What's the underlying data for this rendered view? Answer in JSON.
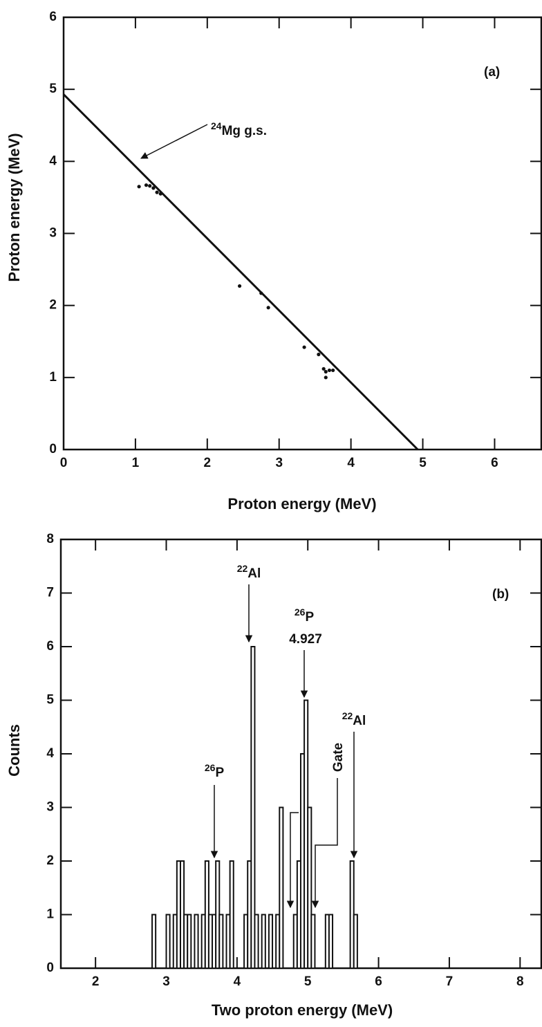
{
  "chart_data": [
    {
      "type": "scatter",
      "panel_label": "(a)",
      "x_label": "Proton energy (MeV)",
      "y_label": "Proton energy (MeV)",
      "xlim": [
        0,
        6.65
      ],
      "ylim": [
        0,
        6
      ],
      "xticks": [
        0,
        1,
        2,
        3,
        4,
        5,
        6
      ],
      "yticks": [
        0,
        1,
        2,
        3,
        4,
        5,
        6
      ],
      "color": "#111111",
      "grid": false,
      "annotations": [
        {
          "sup": "24",
          "text": "Mg g.s."
        }
      ],
      "points": {
        "x": [
          1.05,
          1.15,
          1.2,
          1.25,
          1.3,
          1.35,
          2.45,
          2.75,
          2.85,
          3.35,
          3.55,
          3.62,
          3.65,
          3.7,
          3.75,
          3.65
        ],
        "values": [
          3.65,
          3.67,
          3.66,
          3.63,
          3.57,
          3.55,
          2.27,
          2.17,
          1.97,
          1.42,
          1.32,
          1.12,
          1.08,
          1.1,
          1.1,
          1.0
        ]
      },
      "line": {
        "x": [
          0,
          4.93
        ],
        "values": [
          4.93,
          0
        ]
      }
    },
    {
      "type": "histogram",
      "panel_label": "(b)",
      "x_label": "Two proton energy (MeV)",
      "y_label": "Counts",
      "xlim": [
        1.51,
        8.3
      ],
      "ylim": [
        0,
        8
      ],
      "xticks": [
        2,
        3,
        4,
        5,
        6,
        7,
        8
      ],
      "yticks": [
        0,
        1,
        2,
        3,
        4,
        5,
        6,
        7,
        8
      ],
      "color": "#111111",
      "grid": false,
      "annotations": [
        {
          "sup": "22",
          "text": "Al"
        },
        {
          "sup": "26",
          "text": "P",
          "note": "4.927"
        },
        {
          "sup": "26",
          "text": "P"
        },
        {
          "sup": "22",
          "text": "Al"
        },
        {
          "text": "Gate"
        }
      ],
      "bins": [
        2.75,
        2.8,
        2.85,
        2.9,
        2.95,
        3.0,
        3.05,
        3.1,
        3.15,
        3.2,
        3.25,
        3.3,
        3.35,
        3.4,
        3.45,
        3.5,
        3.55,
        3.6,
        3.65,
        3.7,
        3.75,
        3.8,
        3.85,
        3.9,
        3.95,
        4.0,
        4.05,
        4.1,
        4.15,
        4.2,
        4.25,
        4.3,
        4.35,
        4.4,
        4.45,
        4.5,
        4.55,
        4.6,
        4.65,
        4.7,
        4.75,
        4.8,
        4.85,
        4.9,
        4.95,
        5.0,
        5.05,
        5.1,
        5.15,
        5.2,
        5.25,
        5.3,
        5.35,
        5.4,
        5.45,
        5.5,
        5.55,
        5.6,
        5.65,
        5.7,
        5.75
      ],
      "values": [
        0,
        1,
        0,
        0,
        0,
        1,
        0,
        1,
        2,
        2,
        1,
        1,
        0,
        1,
        0,
        1,
        2,
        1,
        1,
        2,
        1,
        0,
        1,
        2,
        0,
        0,
        0,
        1,
        2,
        6,
        1,
        0,
        1,
        0,
        1,
        0,
        1,
        3,
        0,
        0,
        0,
        1,
        2,
        4,
        5,
        3,
        1,
        0,
        0,
        0,
        1,
        1,
        0,
        0,
        0,
        0,
        0,
        2,
        1,
        0
      ]
    }
  ]
}
